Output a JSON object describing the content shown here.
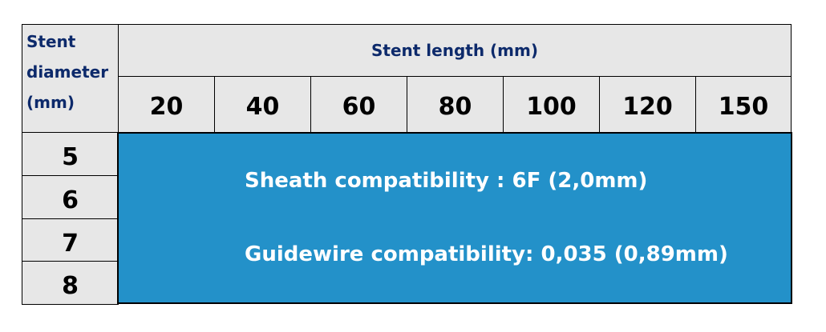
{
  "table": {
    "diameter_header": "Stent\ndiameter\n(mm)",
    "length_header": "Stent length (mm)",
    "lengths": [
      "20",
      "40",
      "60",
      "80",
      "100",
      "120",
      "150"
    ],
    "diameters": [
      "5",
      "6",
      "7",
      "8"
    ],
    "sheath": "Sheath compatibility : 6F (2,0mm)",
    "guidewire": "Guidewire compatibility: 0,035 (0,89mm)"
  },
  "colors": {
    "header_bg": "#e7e7e7",
    "body_bg": "#2391c9",
    "header_text": "#0d2a6b"
  }
}
